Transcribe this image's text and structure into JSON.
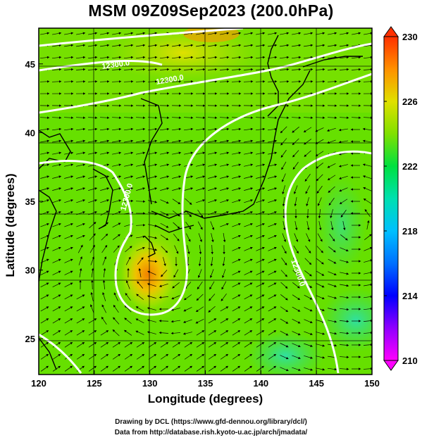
{
  "title": "MSM 09Z09Sep2023 (200.0hPa)",
  "x_axis": {
    "label": "Longitude (degrees)",
    "ticks": [
      120,
      125,
      130,
      135,
      140,
      145,
      150
    ],
    "range": [
      120,
      150
    ]
  },
  "y_axis": {
    "label": "Latitude  (degrees)",
    "ticks": [
      25,
      30,
      35,
      40,
      45
    ],
    "range": [
      22.4,
      47.6
    ]
  },
  "colorbar": {
    "ticks": [
      230,
      226,
      222,
      218,
      214,
      210
    ],
    "range": [
      210,
      230
    ],
    "colors": [
      "#ff00ff",
      "#a000ff",
      "#0000ff",
      "#0080ff",
      "#00c8ff",
      "#00e0c0",
      "#00e070",
      "#40e000",
      "#a0e000",
      "#e0e000",
      "#ffc000",
      "#ff8000",
      "#ff3000"
    ]
  },
  "contours": {
    "labels": [
      "12300.0",
      "12300.0",
      "12300.0",
      "12300.0"
    ]
  },
  "credits": {
    "line1": "Drawing by DCL (https://www.gfd-dennou.org/library/dcl/)",
    "line2": "Data from http://database.rish.kyoto-u.ac.jp/arch/jmadata/"
  }
}
